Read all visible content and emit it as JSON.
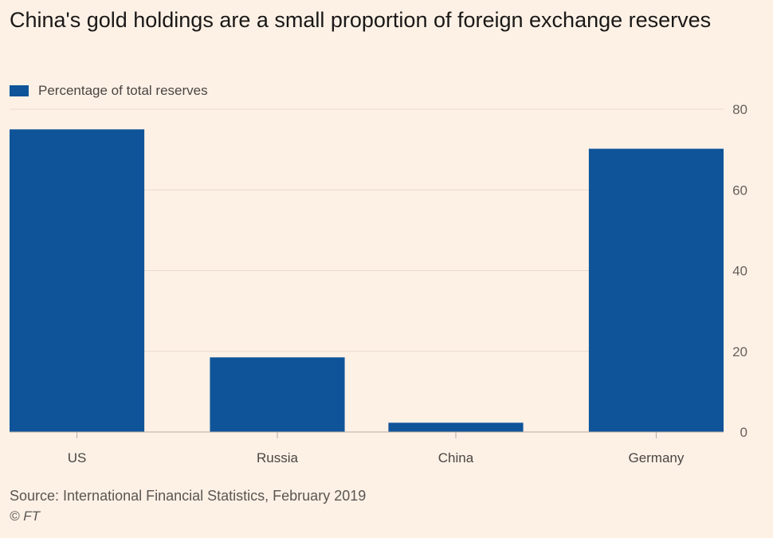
{
  "chart_data": {
    "type": "bar",
    "title": "China's gold holdings are a small proportion of foreign exchange reserves",
    "categories": [
      "US",
      "Russia",
      "China",
      "Germany"
    ],
    "series": [
      {
        "name": "Percentage of total reserves",
        "values": [
          75,
          18.5,
          2.3,
          70.2
        ]
      }
    ],
    "yticks": [
      "0",
      "20",
      "40",
      "60",
      "80"
    ],
    "ylim": [
      0,
      80
    ],
    "xlabel": "",
    "ylabel": "",
    "y_axis_position": "right",
    "grid": true,
    "legend_position": "top-left",
    "bar_color": "#0f5499",
    "source": "Source: International Financial Statistics, February 2019",
    "credit": "© FT"
  }
}
